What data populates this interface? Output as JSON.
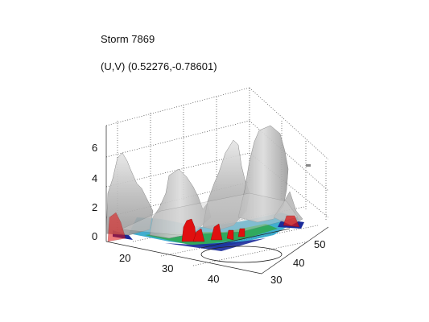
{
  "chart_data": {
    "type": "surface3d",
    "title": "Storm 7869",
    "subtitle": "(U,V) (0.52276,-0.78601)",
    "zlabel": "",
    "xlabel": "",
    "ylabel": "",
    "z_ticks": [
      "0",
      "2",
      "4",
      "6"
    ],
    "x_ticks": [
      "20",
      "30",
      "40"
    ],
    "y_ticks": [
      "30",
      "40",
      "50"
    ],
    "zlim": [
      0,
      7
    ],
    "grid": true,
    "colors": {
      "surface": "#c8c8c8",
      "surface_dark": "#8e8e8e",
      "floor_low": "#1a2a9a",
      "floor_mid": "#1fa0c8",
      "floor_high": "#2ea84a",
      "core": "#e01010"
    }
  }
}
